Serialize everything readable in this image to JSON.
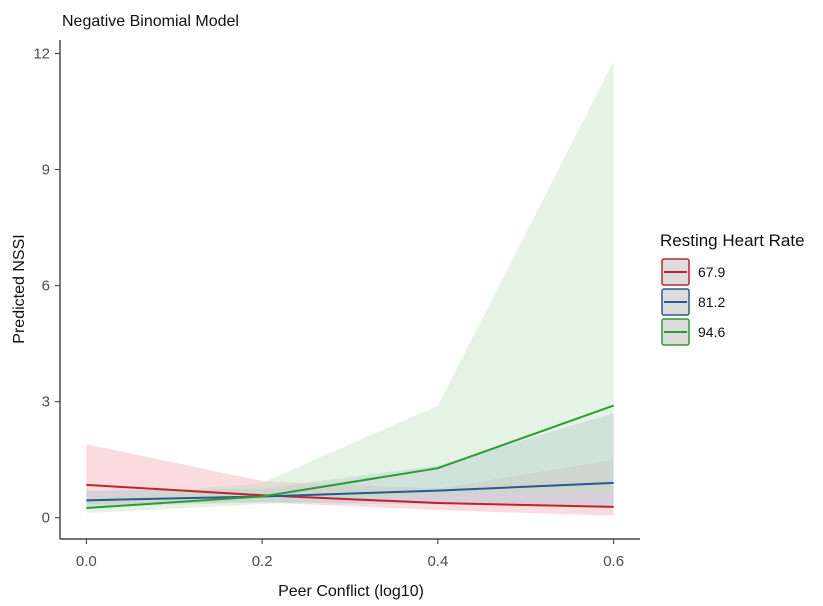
{
  "chart_data": {
    "type": "line",
    "title": "Negative Binomial Model",
    "xlabel": "Peer Conflict (log10)",
    "ylabel": "Predicted NSSI",
    "x": [
      0.0,
      0.2,
      0.4,
      0.6
    ],
    "x_tick_labels": [
      "0.0",
      "0.2",
      "0.4",
      "0.6"
    ],
    "xlim": [
      -0.03,
      0.63
    ],
    "y_ticks": [
      0,
      3,
      6,
      9,
      12
    ],
    "ylim": [
      -0.55,
      12.35
    ],
    "grid": false,
    "legend": {
      "title": "Resting Heart Rate",
      "placement": "right"
    },
    "series": [
      {
        "name": "67.9",
        "color": "#c0232c",
        "fill": "#f4a9b0",
        "values": [
          0.85,
          0.58,
          0.38,
          0.28
        ],
        "lower": [
          0.35,
          0.4,
          0.2,
          0.05
        ],
        "upper": [
          1.9,
          0.95,
          0.75,
          1.5
        ]
      },
      {
        "name": "81.2",
        "color": "#2c5a8c",
        "fill": "#a9bfd6",
        "values": [
          0.45,
          0.55,
          0.7,
          0.9
        ],
        "lower": [
          0.28,
          0.4,
          0.35,
          0.3
        ],
        "upper": [
          0.7,
          0.75,
          1.35,
          2.7
        ]
      },
      {
        "name": "94.6",
        "color": "#2e9a35",
        "fill": "#bfe3bf",
        "values": [
          0.25,
          0.55,
          1.28,
          2.9
        ],
        "lower": [
          0.12,
          0.35,
          0.6,
          0.7
        ],
        "upper": [
          0.5,
          0.9,
          2.9,
          11.8
        ]
      }
    ]
  }
}
